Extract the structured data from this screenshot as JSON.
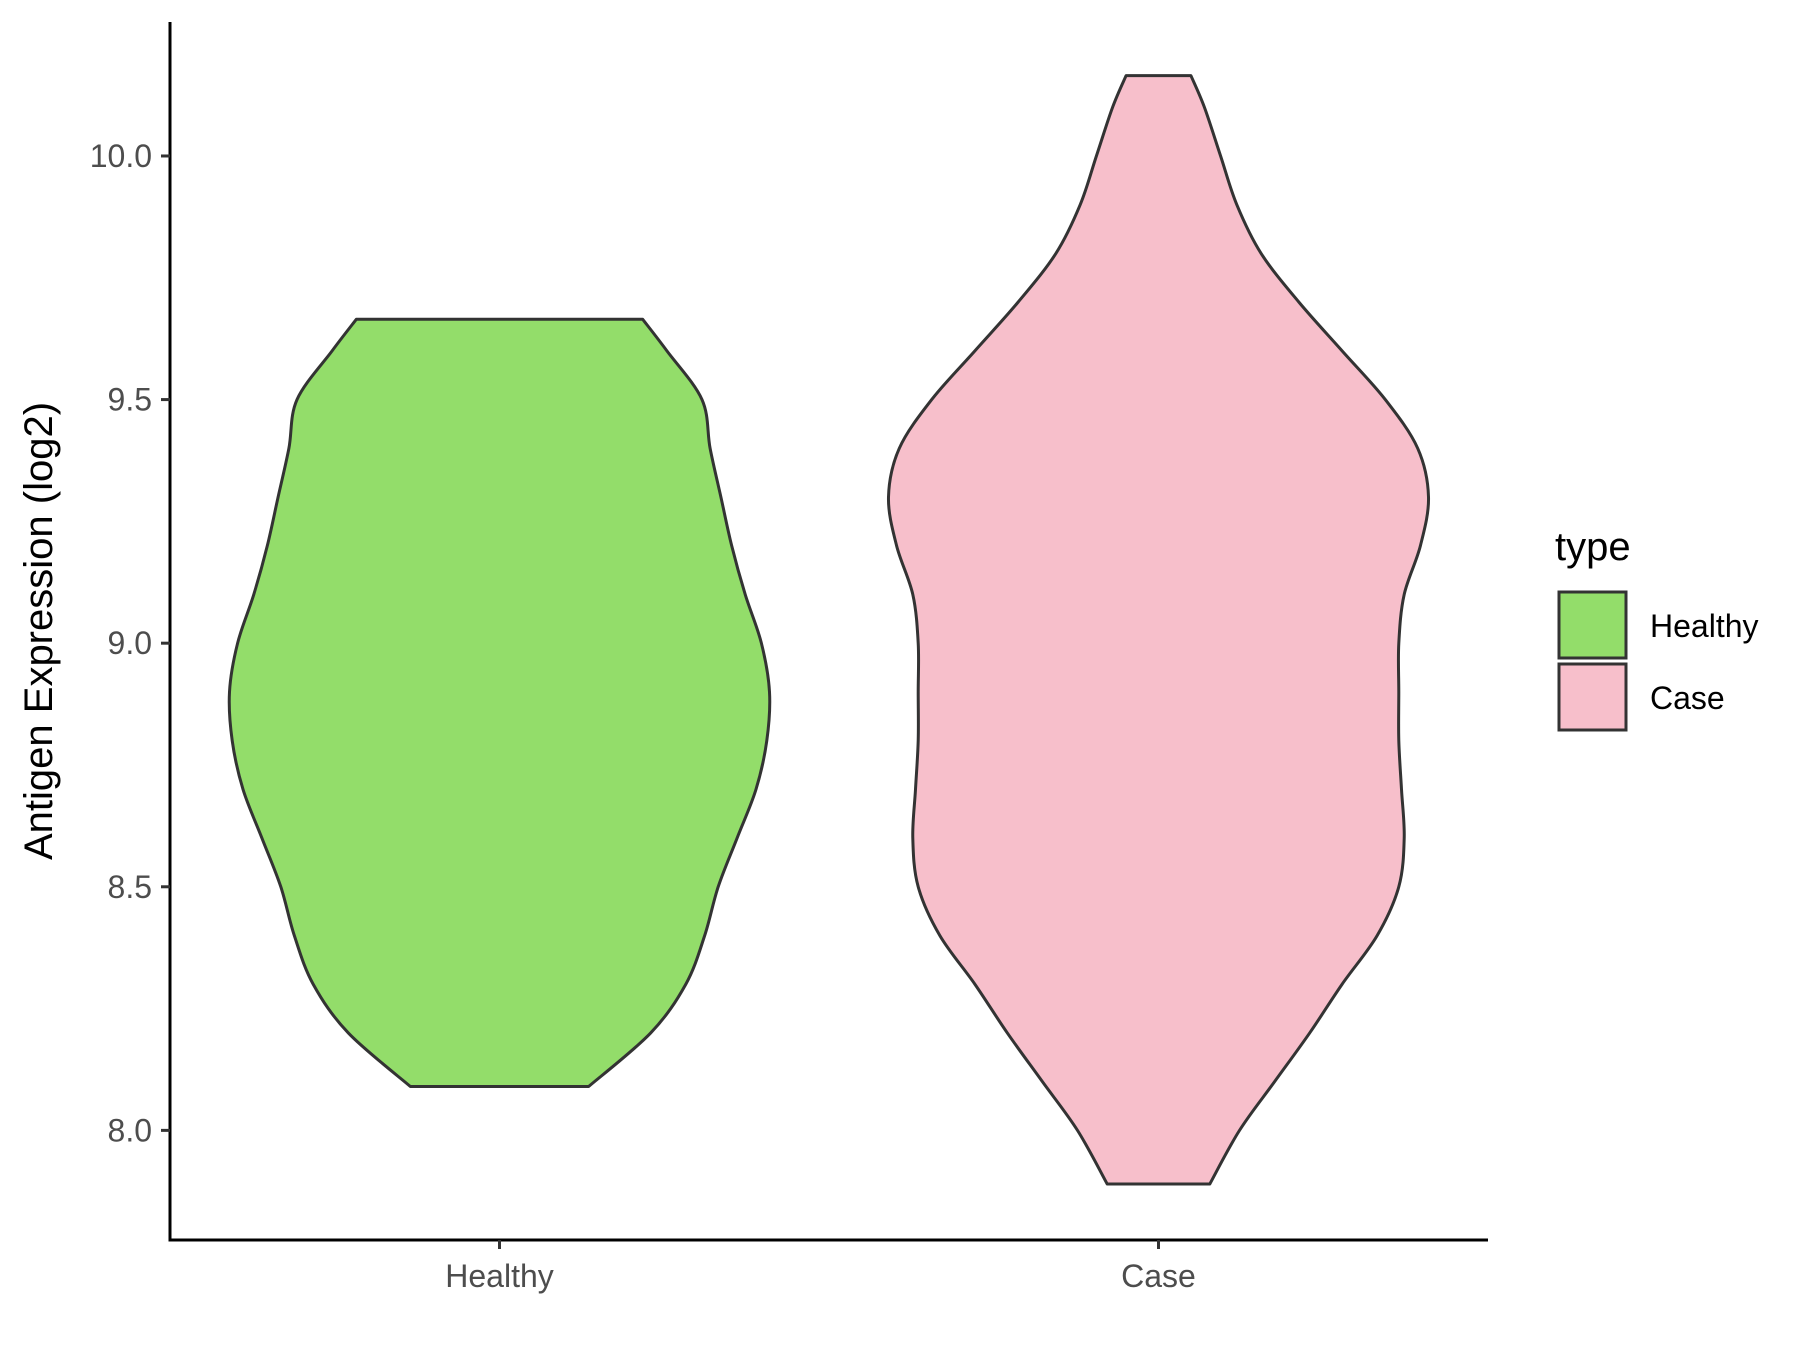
{
  "chart_data": {
    "type": "violin",
    "ylabel": "Antigen Expression (log2)",
    "xlabel": "",
    "ylim": [
      7.775,
      10.275
    ],
    "yticks": [
      8.0,
      8.5,
      9.0,
      9.5,
      10.0
    ],
    "ytick_labels": [
      "8.0",
      "8.5",
      "9.0",
      "9.5",
      "10.0"
    ],
    "categories": [
      "Healthy",
      "Case"
    ],
    "legend": {
      "title": "type",
      "position": "right",
      "entries": [
        {
          "label": "Healthy",
          "color": "#93dd6a"
        },
        {
          "label": "Case",
          "color": "#f7bfcb"
        }
      ]
    },
    "series": [
      {
        "name": "Healthy",
        "color": "#93dd6a",
        "range": [
          8.09,
          9.665
        ],
        "profile": [
          [
            8.09,
            0.33
          ],
          [
            8.2,
            0.56
          ],
          [
            8.3,
            0.69
          ],
          [
            8.4,
            0.76
          ],
          [
            8.5,
            0.81
          ],
          [
            8.6,
            0.88
          ],
          [
            8.7,
            0.95
          ],
          [
            8.8,
            0.99
          ],
          [
            8.9,
            1.0
          ],
          [
            9.0,
            0.97
          ],
          [
            9.1,
            0.91
          ],
          [
            9.2,
            0.86
          ],
          [
            9.3,
            0.82
          ],
          [
            9.4,
            0.78
          ],
          [
            9.5,
            0.75
          ],
          [
            9.6,
            0.62
          ],
          [
            9.665,
            0.53
          ]
        ]
      },
      {
        "name": "Case",
        "color": "#f7bfcb",
        "range": [
          7.89,
          10.165
        ],
        "profile": [
          [
            7.89,
            0.19
          ],
          [
            8.0,
            0.3
          ],
          [
            8.1,
            0.43
          ],
          [
            8.2,
            0.56
          ],
          [
            8.3,
            0.68
          ],
          [
            8.4,
            0.81
          ],
          [
            8.5,
            0.89
          ],
          [
            8.6,
            0.91
          ],
          [
            8.7,
            0.9
          ],
          [
            8.8,
            0.89
          ],
          [
            8.9,
            0.89
          ],
          [
            9.0,
            0.89
          ],
          [
            9.1,
            0.91
          ],
          [
            9.2,
            0.97
          ],
          [
            9.3,
            1.0
          ],
          [
            9.4,
            0.96
          ],
          [
            9.5,
            0.84
          ],
          [
            9.6,
            0.68
          ],
          [
            9.7,
            0.52
          ],
          [
            9.8,
            0.38
          ],
          [
            9.9,
            0.29
          ],
          [
            10.0,
            0.23
          ],
          [
            10.1,
            0.17
          ],
          [
            10.165,
            0.12
          ]
        ]
      }
    ]
  }
}
